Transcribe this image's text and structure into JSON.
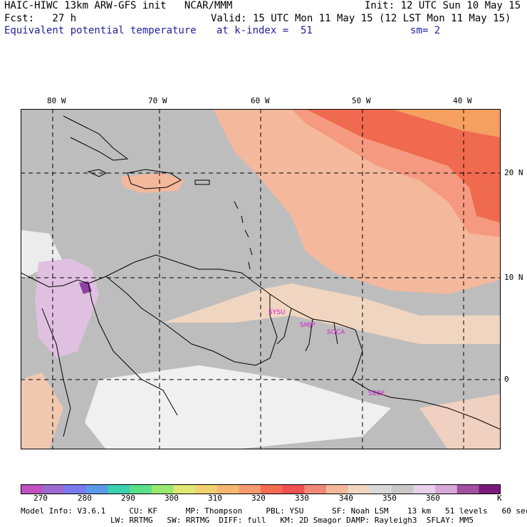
{
  "header": {
    "line1_left": "HAIC-HIWC 13km ARW-GFS init   NCAR/MMM",
    "line1_right": "Init: 12 UTC Sun 10 May 15",
    "line2_left": "Fcst:   27 h",
    "line2_right": "Valid: 15 UTC Mon 11 May 15 (12 LST Mon 11 May 15)",
    "line3_left": "Equivalent potential temperature",
    "line3_mid": "at k-index =  51",
    "line3_right": "sm= 2"
  },
  "map": {
    "lon_labels": [
      "80 W",
      "70 W",
      "60 W",
      "50 W",
      "40 W"
    ],
    "lat_labels": [
      "20 N",
      "10 N",
      "0"
    ],
    "stations": [
      "SYSU",
      "SMJP",
      "SOCA",
      "SBBE"
    ],
    "colors": {
      "land_bg": "#c8c8c8",
      "ocean_bg": "#bdbdbd",
      "warm1": "#f4b89c",
      "warm2": "#f59a80",
      "warm3": "#f06a50",
      "warm4": "#f5a060",
      "cool1": "#e0c0e0",
      "cool2": "#9040a0",
      "white": "#f0f0f0",
      "coast": "#000000"
    }
  },
  "colorbar": {
    "unit": "K",
    "tick_labels": [
      "270",
      "280",
      "290",
      "300",
      "310",
      "320",
      "330",
      "340",
      "350",
      "360"
    ],
    "colors": [
      "#c050c0",
      "#9a6ad0",
      "#7a7aee",
      "#5a9ae8",
      "#3ad0b0",
      "#5ae08a",
      "#9ae870",
      "#dfe870",
      "#f0d070",
      "#f5b870",
      "#f59a70",
      "#f56a50",
      "#f05050",
      "#f08878",
      "#f4b89c",
      "#f0d6c0",
      "#d8d8d8",
      "#c8c8c8",
      "#e8d0e8",
      "#d8a8d8",
      "#a050a0",
      "#7a1a7a"
    ]
  },
  "footer": {
    "line1": "Model Info: V3.6.1     CU: KF      MP: Thompson     PBL: YSU      SF: Noah LSM    13 km   51 levels   60 sec",
    "line2": "LW: RRTMG   SW: RRTMG  DIFF: full   KM: 2D Smagor DAMP: Rayleigh3  SFLAY: MM5"
  }
}
